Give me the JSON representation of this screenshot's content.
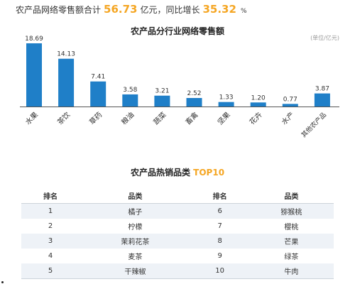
{
  "headline": {
    "prefix": "农产品网络零售额合计",
    "total": "56.73",
    "total_unit": "亿元，同比增长",
    "growth": "35.32",
    "growth_unit": "%"
  },
  "chart_data": [
    {
      "type": "bar",
      "title": "农产品分行业网络零售额",
      "unit_note": "(单位/亿元)",
      "categories": [
        "水果",
        "茶饮",
        "草药",
        "粮油",
        "蔬菜",
        "畜禽",
        "坚果",
        "花卉",
        "水产",
        "其他农产品"
      ],
      "values": [
        18.69,
        14.13,
        7.41,
        3.58,
        3.21,
        2.52,
        1.33,
        1.2,
        0.77,
        3.87
      ],
      "value_labels": [
        "18.69",
        "14.13",
        "7.41",
        "3.58",
        "3.21",
        "2.52",
        "1.33",
        "1.20",
        "0.77",
        "3.87"
      ],
      "ylim": [
        0,
        18.69
      ],
      "bar_color": "#1f7fc8",
      "grid": false
    },
    {
      "type": "table",
      "title": "农产品热销品类",
      "title_highlight": "TOP10",
      "highlight_color": "#f5a623",
      "columns": [
        "排名",
        "品类",
        "排名",
        "品类"
      ],
      "rows": [
        [
          "1",
          "橘子",
          "6",
          "猕猴桃"
        ],
        [
          "2",
          "柠檬",
          "7",
          "樱桃"
        ],
        [
          "3",
          "茉莉花茶",
          "8",
          "芒果"
        ],
        [
          "4",
          "麦茶",
          "9",
          "绿茶"
        ],
        [
          "5",
          "干辣椒",
          "10",
          "牛肉"
        ]
      ]
    }
  ]
}
